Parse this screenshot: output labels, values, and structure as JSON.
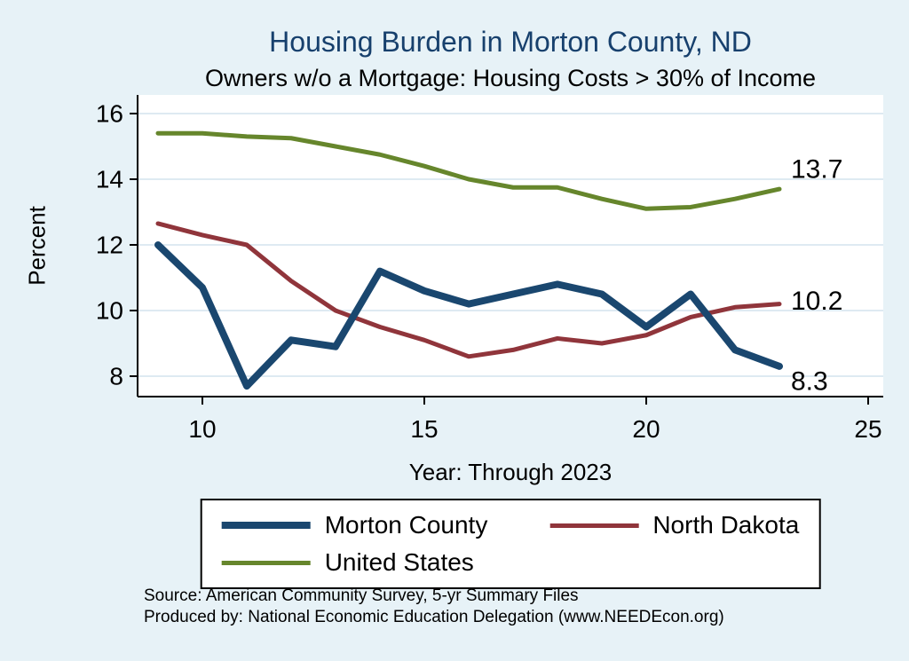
{
  "chart_data": {
    "type": "line",
    "title": "Housing Burden in Morton County, ND",
    "subtitle": "Owners w/o a Mortgage: Housing Costs > 30% of Income",
    "xlabel": "Year: Through 2023",
    "ylabel": "Percent",
    "x": [
      9,
      10,
      11,
      12,
      13,
      14,
      15,
      16,
      17,
      18,
      19,
      20,
      21,
      22,
      23
    ],
    "xticks": [
      10,
      15,
      20,
      25
    ],
    "yticks": [
      8,
      10,
      12,
      14,
      16
    ],
    "xlim": [
      8.5,
      25.4
    ],
    "ylim": [
      7.4,
      16.6
    ],
    "grid": "horizontal",
    "legend_position": "bottom",
    "page_bg": "#e7f2f7",
    "plot_bg": "#ffffff",
    "grid_color": "#d3e3ed",
    "title_color": "#17406d",
    "series": [
      {
        "name": "Morton County",
        "color": "#1a476f",
        "line_width": 8,
        "end_label": "8.3",
        "values": [
          12.0,
          10.7,
          7.7,
          9.1,
          8.9,
          11.2,
          10.6,
          10.2,
          10.5,
          10.8,
          10.5,
          9.5,
          10.5,
          8.8,
          8.3
        ]
      },
      {
        "name": "North Dakota",
        "color": "#90353b",
        "line_width": 5,
        "end_label": "10.2",
        "values": [
          12.65,
          12.3,
          12.0,
          10.9,
          10.0,
          9.5,
          9.1,
          8.6,
          8.8,
          9.15,
          9.0,
          9.25,
          9.8,
          10.1,
          10.2
        ]
      },
      {
        "name": "United States",
        "color": "#66862c",
        "line_width": 5,
        "end_label": "13.7",
        "values": [
          15.4,
          15.4,
          15.3,
          15.25,
          15.0,
          14.75,
          14.4,
          14.0,
          13.75,
          13.75,
          13.4,
          13.1,
          13.15,
          13.4,
          13.7
        ]
      }
    ]
  },
  "notes": {
    "source": "Source: American Community Survey, 5-yr Summary Files",
    "produced_by": "Produced by: National Economic Education Delegation (www.NEEDEcon.org)"
  }
}
